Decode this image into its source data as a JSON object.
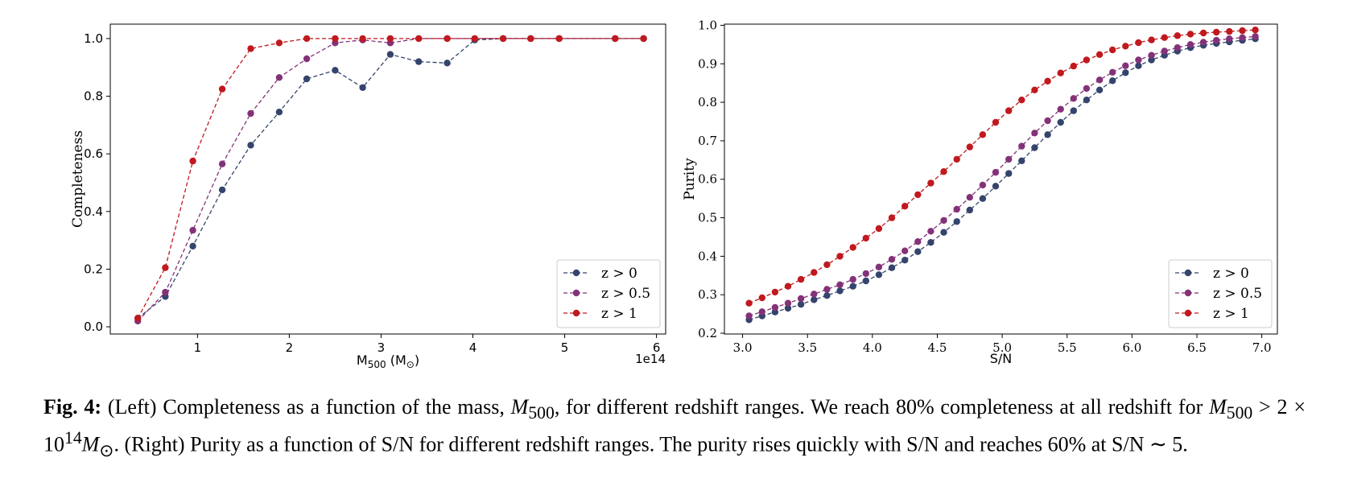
{
  "colors": {
    "z0": "#34446c",
    "z05": "#833278",
    "z1": "#c0191e"
  },
  "chart_data": [
    {
      "type": "line",
      "panel": "left",
      "xlabel": "M500 (M⊙)",
      "xlabel_main": "M",
      "xlabel_sub": "500",
      "xlabel_unit_open": " (M",
      "xlabel_unit_sub": "⊙",
      "xlabel_unit_close": ")",
      "ylabel": "Completeness",
      "offset_text": "1e14",
      "xlim": [
        0.05,
        6.1
      ],
      "ylim": [
        -0.025,
        1.05
      ],
      "xticks": [
        1,
        2,
        3,
        4,
        5,
        6
      ],
      "xtick_labels": [
        "1",
        "2",
        "3",
        "4",
        "5",
        "6"
      ],
      "yticks": [
        0.0,
        0.2,
        0.4,
        0.6,
        0.8,
        1.0
      ],
      "ytick_labels": [
        "0.0",
        "0.2",
        "0.4",
        "0.6",
        "0.8",
        "1.0"
      ],
      "legend_position": "lower-right",
      "grid": false,
      "x": [
        0.35,
        0.65,
        0.95,
        1.27,
        1.58,
        1.89,
        2.19,
        2.5,
        2.8,
        3.1,
        3.41,
        3.72,
        4.02,
        4.33,
        4.63,
        4.94,
        5.55,
        5.86
      ],
      "series": [
        {
          "name": "z > 0",
          "color_key": "z0",
          "values": [
            0.03,
            0.105,
            0.28,
            0.475,
            0.63,
            0.745,
            0.86,
            0.89,
            0.83,
            0.945,
            0.92,
            0.915,
            0.995,
            1.0,
            1.0,
            1.0,
            1.0,
            1.0
          ]
        },
        {
          "name": "z > 0.5",
          "color_key": "z05",
          "values": [
            0.02,
            0.12,
            0.335,
            0.565,
            0.74,
            0.865,
            0.93,
            0.985,
            0.995,
            0.985,
            1.0,
            1.0,
            1.0,
            1.0,
            1.0,
            1.0,
            1.0,
            1.0
          ]
        },
        {
          "name": "z > 1",
          "color_key": "z1",
          "values": [
            0.03,
            0.205,
            0.575,
            0.825,
            0.965,
            0.985,
            1.0,
            1.0,
            1.0,
            1.0,
            1.0,
            1.0,
            1.0,
            1.0,
            1.0,
            1.0,
            1.0,
            1.0
          ]
        }
      ]
    },
    {
      "type": "line",
      "panel": "right",
      "xlabel": "S/N",
      "ylabel": "Purity",
      "xlim": [
        2.86,
        7.12
      ],
      "ylim": [
        0.198,
        1.003
      ],
      "xticks": [
        3.0,
        3.5,
        4.0,
        4.5,
        5.0,
        5.5,
        6.0,
        6.5,
        7.0
      ],
      "xtick_labels": [
        "3.0",
        "3.5",
        "4.0",
        "4.5",
        "5.0",
        "5.5",
        "6.0",
        "6.5",
        "7.0"
      ],
      "yticks": [
        0.2,
        0.3,
        0.4,
        0.5,
        0.6,
        0.7,
        0.8,
        0.9,
        1.0
      ],
      "ytick_labels": [
        "0.2",
        "0.3",
        "0.4",
        "0.5",
        "0.6",
        "0.7",
        "0.8",
        "0.9",
        "1.0"
      ],
      "legend_position": "lower-right",
      "grid": false,
      "x": [
        3.05,
        3.15,
        3.25,
        3.35,
        3.45,
        3.55,
        3.65,
        3.75,
        3.85,
        3.95,
        4.05,
        4.15,
        4.25,
        4.35,
        4.45,
        4.55,
        4.65,
        4.75,
        4.85,
        4.95,
        5.05,
        5.15,
        5.25,
        5.35,
        5.45,
        5.55,
        5.65,
        5.75,
        5.85,
        5.95,
        6.05,
        6.15,
        6.25,
        6.35,
        6.45,
        6.55,
        6.65,
        6.75,
        6.85,
        6.95
      ],
      "series": [
        {
          "name": "z > 0",
          "color_key": "z0",
          "values": [
            0.235,
            0.245,
            0.255,
            0.265,
            0.275,
            0.287,
            0.298,
            0.31,
            0.322,
            0.336,
            0.352,
            0.37,
            0.39,
            0.412,
            0.436,
            0.462,
            0.49,
            0.52,
            0.55,
            0.582,
            0.615,
            0.648,
            0.682,
            0.716,
            0.748,
            0.778,
            0.806,
            0.832,
            0.856,
            0.877,
            0.895,
            0.91,
            0.922,
            0.933,
            0.942,
            0.948,
            0.953,
            0.957,
            0.961,
            0.965
          ]
        },
        {
          "name": "z > 0.5",
          "color_key": "z05",
          "values": [
            0.245,
            0.256,
            0.267,
            0.278,
            0.29,
            0.302,
            0.314,
            0.326,
            0.34,
            0.355,
            0.372,
            0.392,
            0.414,
            0.438,
            0.465,
            0.493,
            0.522,
            0.553,
            0.585,
            0.618,
            0.652,
            0.686,
            0.72,
            0.752,
            0.782,
            0.81,
            0.836,
            0.858,
            0.878,
            0.895,
            0.91,
            0.922,
            0.933,
            0.942,
            0.95,
            0.956,
            0.961,
            0.965,
            0.968,
            0.971
          ]
        },
        {
          "name": "z > 1",
          "color_key": "z1",
          "values": [
            0.278,
            0.292,
            0.307,
            0.322,
            0.34,
            0.358,
            0.378,
            0.4,
            0.423,
            0.447,
            0.472,
            0.5,
            0.53,
            0.56,
            0.59,
            0.62,
            0.652,
            0.684,
            0.716,
            0.748,
            0.778,
            0.806,
            0.832,
            0.855,
            0.876,
            0.894,
            0.91,
            0.924,
            0.936,
            0.946,
            0.955,
            0.962,
            0.968,
            0.973,
            0.977,
            0.98,
            0.982,
            0.984,
            0.986,
            0.988
          ]
        }
      ]
    }
  ],
  "caption": {
    "label": "Fig. 4:",
    "part1": " (Left) Completeness as a function of the mass, ",
    "m": "M",
    "m_sub": "500",
    "part2": ", for different redshift ranges. We reach 80% completeness at all redshift for ",
    "m2": "M",
    "m2_sub": "500",
    "part3": " >  2 × 10",
    "exp": "14",
    "m3": "M",
    "m3_sub": "⊙",
    "part4": ". (Right) Purity as a function of S/N for different redshift ranges. The purity rises quickly with S/N and reaches 60% at S/N ∼ 5."
  }
}
